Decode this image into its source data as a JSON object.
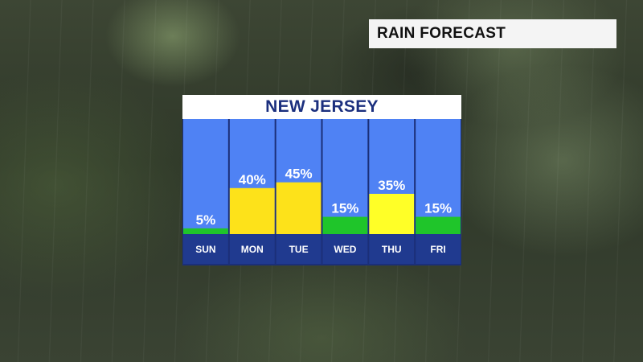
{
  "header": {
    "title": "RAIN FORECAST"
  },
  "panel": {
    "region": "NEW JERSEY"
  },
  "colors": {
    "column_bg": "#4f82f4",
    "day_bg": "#203a8f",
    "low": "#1fc52a",
    "medium": "#fde21a",
    "high": "#ffff27"
  },
  "chart_data": {
    "type": "bar",
    "categories": [
      "SUN",
      "MON",
      "TUE",
      "WED",
      "THU",
      "FRI"
    ],
    "values": [
      5,
      40,
      45,
      15,
      35,
      15
    ],
    "value_labels": [
      "5%",
      "40%",
      "45%",
      "15%",
      "35%",
      "15%"
    ],
    "bar_colors": [
      "#1fc52a",
      "#fde21a",
      "#fde21a",
      "#1fc52a",
      "#ffff27",
      "#1fc52a"
    ],
    "ylim": [
      0,
      100
    ],
    "grid": false,
    "legend": "none"
  }
}
